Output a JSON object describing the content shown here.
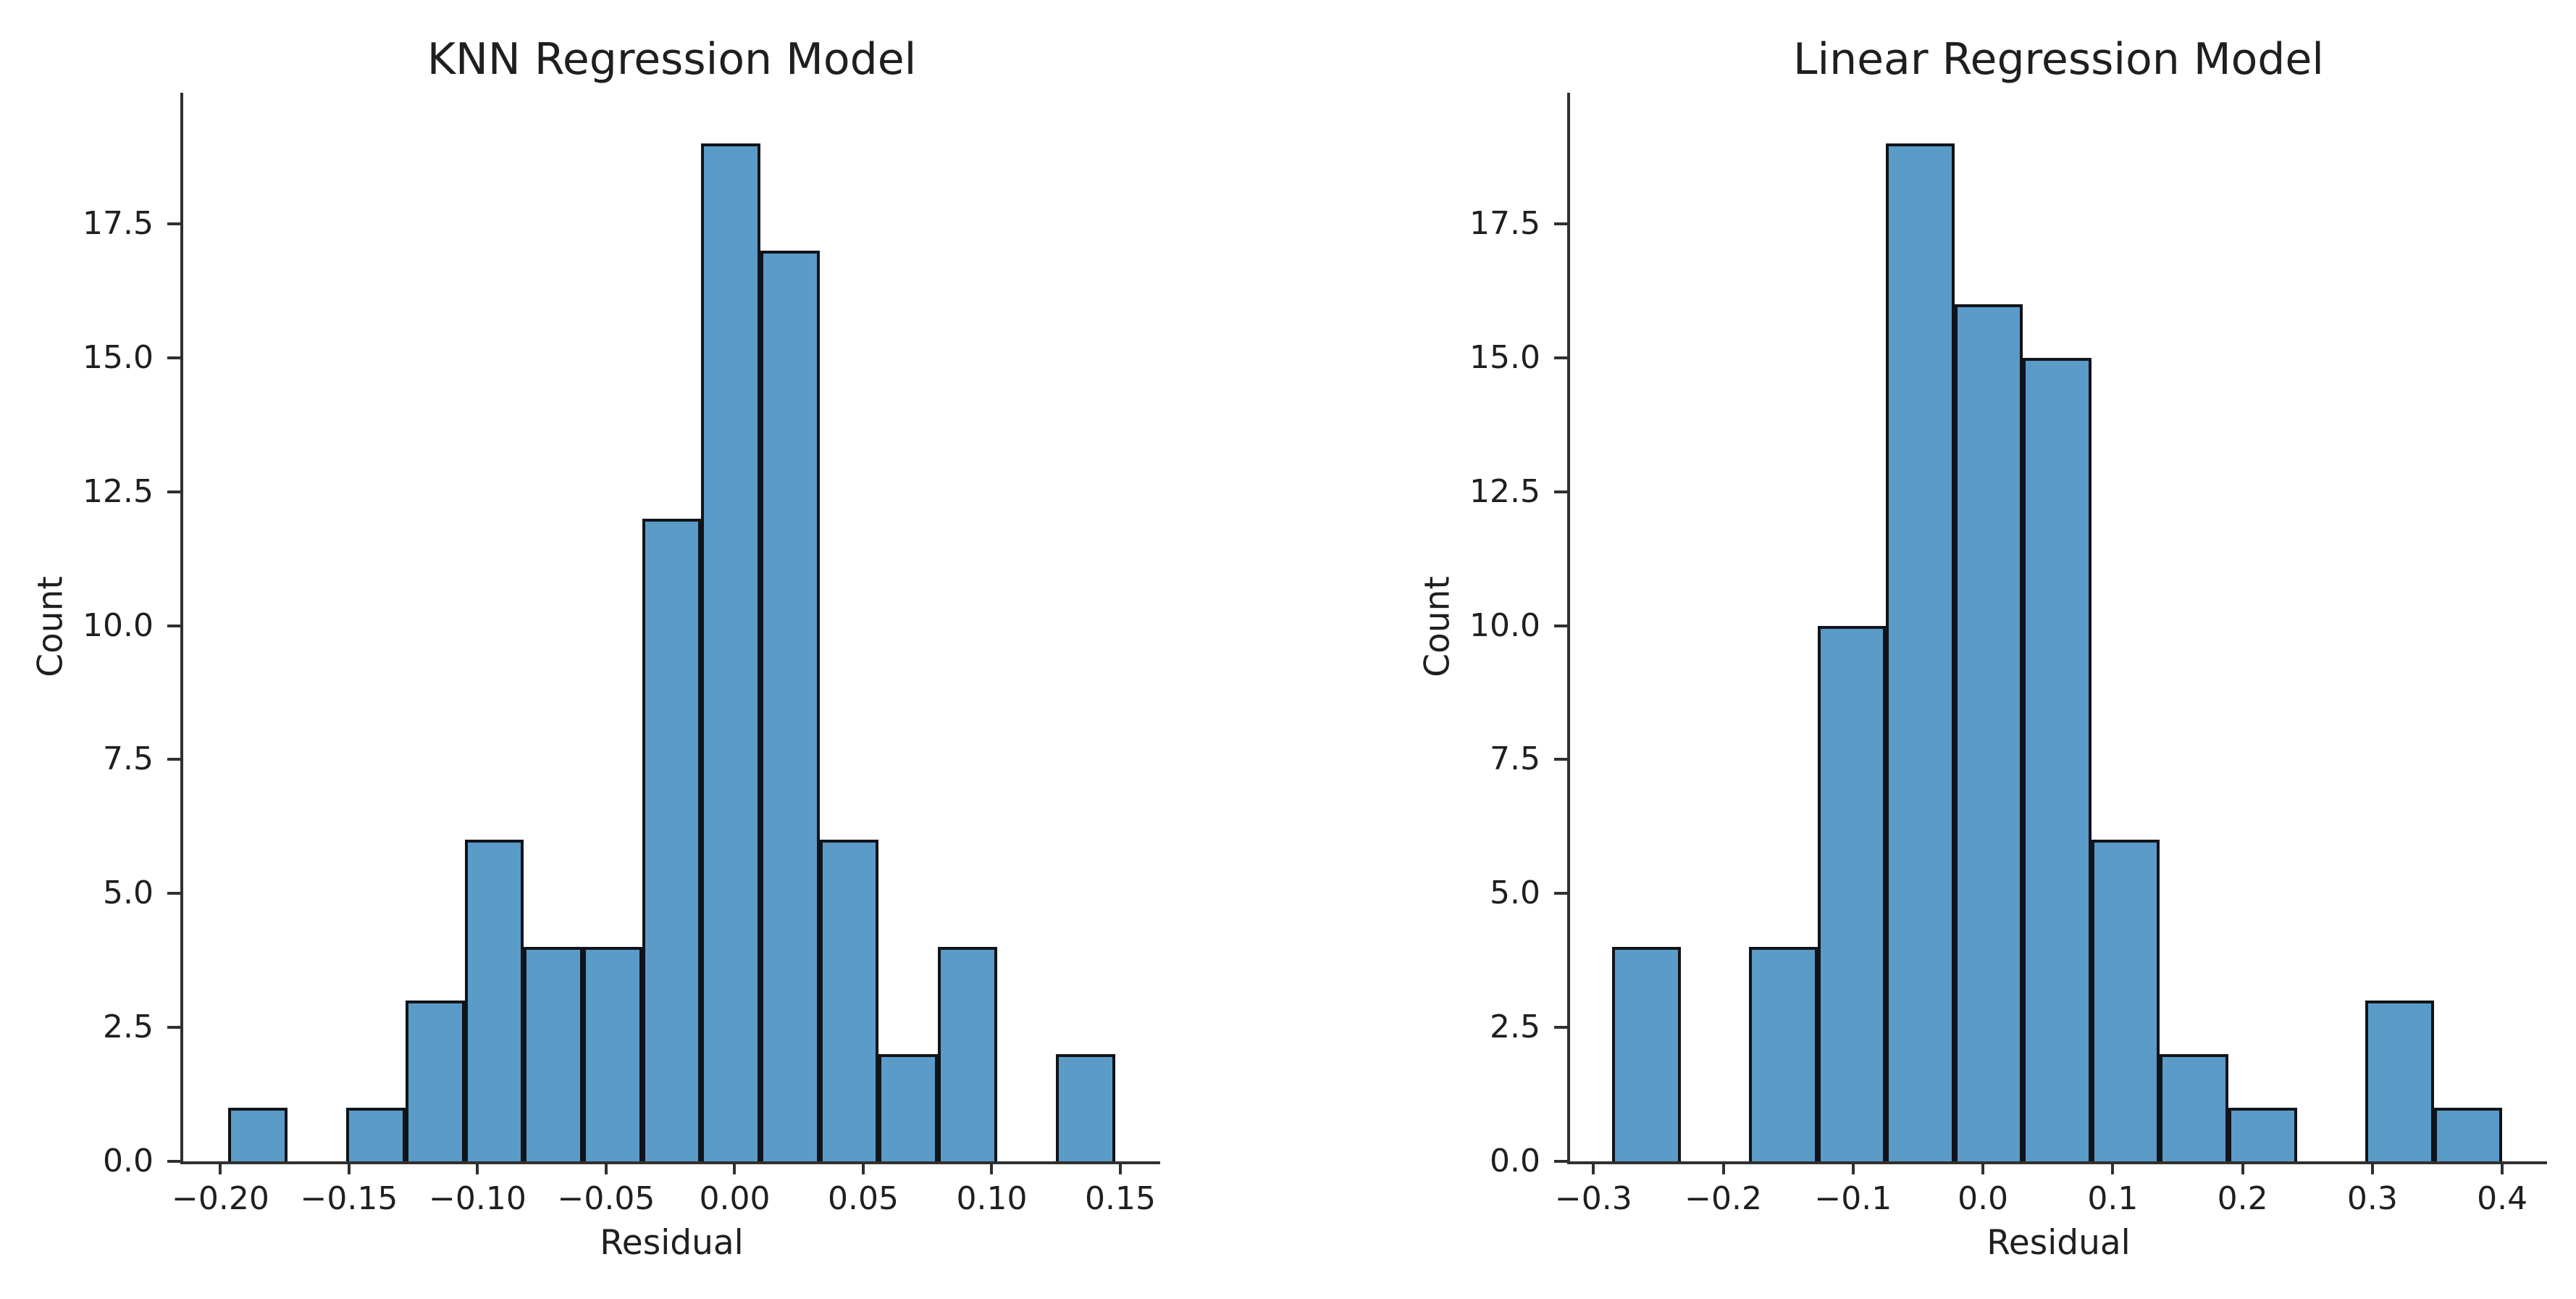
{
  "figure": {
    "background_color": "#ffffff",
    "text_color": "#1f1f1f",
    "axis_color": "#303030"
  },
  "chart_data": [
    {
      "type": "bar",
      "subtype": "histogram",
      "title": "KNN Regression Model",
      "xlabel": "Residual",
      "ylabel": "Count",
      "grid": false,
      "legend_position": "none",
      "bar_fill_color": "#5a9bc8",
      "bar_edge_color": "#101419",
      "bins": {
        "start": -0.197,
        "width": 0.023
      },
      "counts": [
        1,
        0,
        1,
        3,
        6,
        4,
        4,
        12,
        19,
        17,
        6,
        2,
        4,
        0,
        2
      ],
      "xlim": [
        -0.2145,
        0.1655
      ],
      "ylim": [
        0,
        19.95
      ],
      "xticks": [
        -0.2,
        -0.15,
        -0.1,
        -0.05,
        0.0,
        0.05,
        0.1,
        0.15
      ],
      "xtick_labels": [
        "−0.20",
        "−0.15",
        "−0.10",
        "−0.05",
        "0.00",
        "0.05",
        "0.10",
        "0.15"
      ],
      "yticks": [
        0,
        2.5,
        5,
        7.5,
        10,
        12.5,
        15,
        17.5
      ],
      "ytick_labels": [
        "0.0",
        "2.5",
        "5.0",
        "7.5",
        "10.0",
        "12.5",
        "15.0",
        "17.5"
      ]
    },
    {
      "type": "bar",
      "subtype": "histogram",
      "title": "Linear Regression Model",
      "xlabel": "Residual",
      "ylabel": "Count",
      "grid": false,
      "legend_position": "none",
      "bar_fill_color": "#5a9bc8",
      "bar_edge_color": "#101419",
      "bins": {
        "start": -0.2855,
        "width": 0.05273
      },
      "counts": [
        4,
        0,
        4,
        10,
        19,
        16,
        15,
        6,
        2,
        1,
        0,
        3,
        1
      ],
      "xlim": [
        -0.318,
        0.4345
      ],
      "ylim": [
        0,
        19.95
      ],
      "xticks": [
        -0.3,
        -0.2,
        -0.1,
        0.0,
        0.1,
        0.2,
        0.3,
        0.4
      ],
      "xtick_labels": [
        "−0.3",
        "−0.2",
        "−0.1",
        "0.0",
        "0.1",
        "0.2",
        "0.3",
        "0.4"
      ],
      "yticks": [
        0,
        2.5,
        5,
        7.5,
        10,
        12.5,
        15,
        17.5
      ],
      "ytick_labels": [
        "0.0",
        "2.5",
        "5.0",
        "7.5",
        "10.0",
        "12.5",
        "15.0",
        "17.5"
      ]
    }
  ]
}
